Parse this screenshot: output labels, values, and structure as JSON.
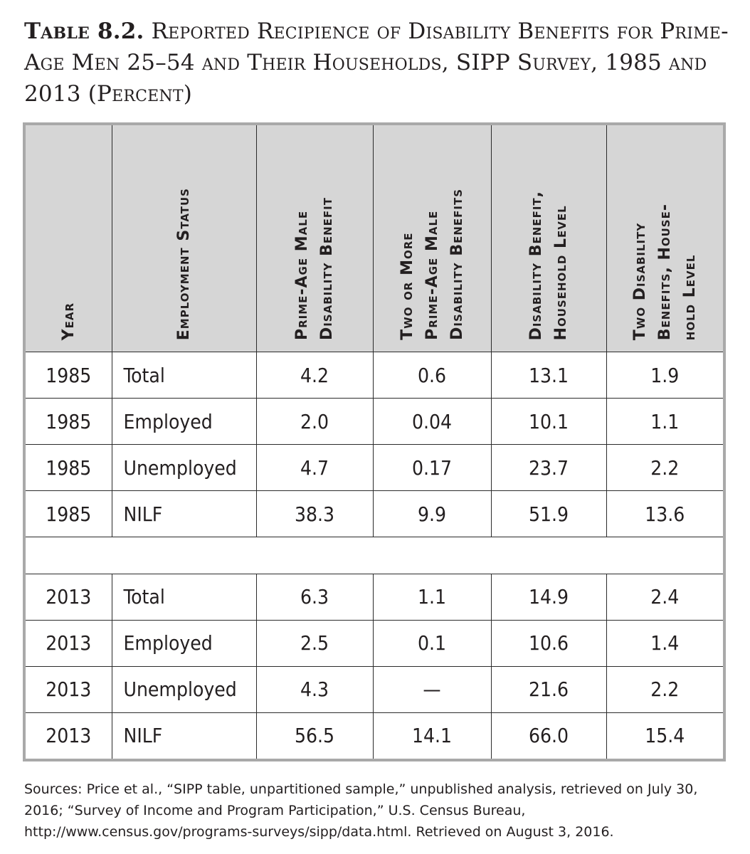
{
  "title": {
    "label": "Table 8.2.",
    "text": "Reported Recipience of Disability Benefits for Prime-Age Men 25–54 and Their Households, SIPP Survey, 1985 and 2013 (Percent)"
  },
  "table": {
    "headers": [
      "Year",
      "Employment Status",
      "Prime-Age Male\nDisability Benefit",
      "Two or More\nPrime-Age Male\nDisability Benefits",
      "Disability Benefit,\nHousehold Level",
      "Two Disability\nBenefits, House-\nhold Level"
    ],
    "rows_1985": [
      {
        "year": "1985",
        "status": "Total",
        "v1": "4.2",
        "v2": "0.6",
        "v3": "13.1",
        "v4": "1.9"
      },
      {
        "year": "1985",
        "status": "Employed",
        "v1": "2.0",
        "v2": "0.04",
        "v3": "10.1",
        "v4": "1.1"
      },
      {
        "year": "1985",
        "status": "Unemployed",
        "v1": "4.7",
        "v2": "0.17",
        "v3": "23.7",
        "v4": "2.2"
      },
      {
        "year": "1985",
        "status": "NILF",
        "v1": "38.3",
        "v2": "9.9",
        "v3": "51.9",
        "v4": "13.6"
      }
    ],
    "rows_2013": [
      {
        "year": "2013",
        "status": "Total",
        "v1": "6.3",
        "v2": "1.1",
        "v3": "14.9",
        "v4": "2.4"
      },
      {
        "year": "2013",
        "status": "Employed",
        "v1": "2.5",
        "v2": "0.1",
        "v3": "10.6",
        "v4": "1.4"
      },
      {
        "year": "2013",
        "status": "Unemployed",
        "v1": "4.3",
        "v2": "—",
        "v3": "21.6",
        "v4": "2.2"
      },
      {
        "year": "2013",
        "status": "NILF",
        "v1": "56.5",
        "v2": "14.1",
        "v3": "66.0",
        "v4": "15.4"
      }
    ]
  },
  "sources": "Sources: Price et al., “SIPP table, unpartitioned sample,” unpublished analysis, retrieved on July 30, 2016; “Survey of Income and Program Participation,” U.S. Census Bureau, http://www.census.gov/programs-surveys/sipp/data.html. Retrieved on August 3, 2016."
}
